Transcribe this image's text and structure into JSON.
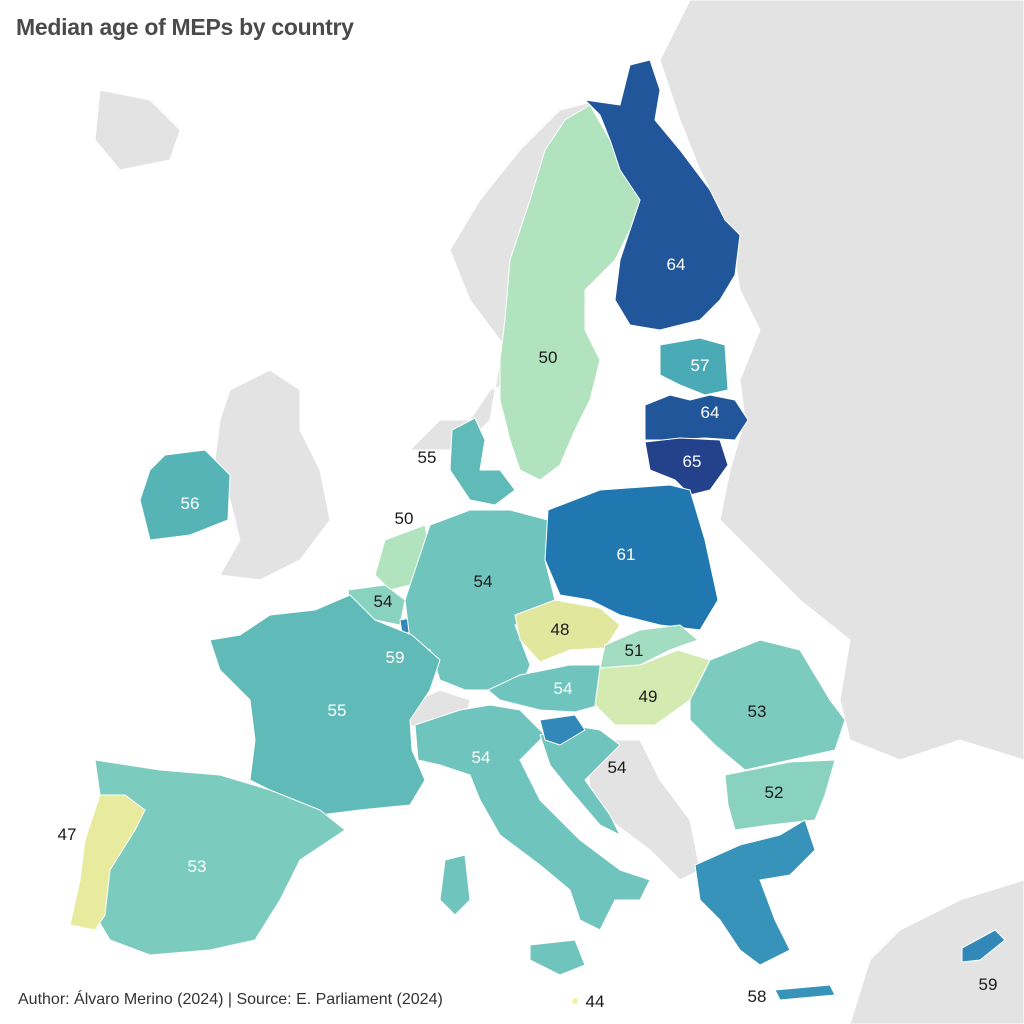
{
  "title": "Median age of MEPs by country",
  "footer": "Author: Álvaro Merino (2024) | Source: E. Parliament (2024)",
  "colors": {
    "background_land": "#e3e3e3",
    "sea": "#ffffff",
    "scale": {
      "44": "#f5f0a0",
      "47": "#e8eb9e",
      "48": "#e1e89e",
      "49": "#d3eab0",
      "50": "#b0e3be",
      "51": "#a2ddc2",
      "52": "#8ad2c0",
      "53": "#7ccbbf",
      "54": "#6fc4bd",
      "55": "#60bbb8",
      "56": "#57b4b6",
      "57": "#4aaab6",
      "58": "#3793b9",
      "59": "#3288b8",
      "61": "#2178b0",
      "64": "#21569a",
      "65": "#24418c"
    }
  },
  "countries": [
    {
      "name": "Finland",
      "value": "64"
    },
    {
      "name": "Sweden",
      "value": "50"
    },
    {
      "name": "Estonia",
      "value": "57"
    },
    {
      "name": "Latvia",
      "value": "64"
    },
    {
      "name": "Lithuania",
      "value": "65"
    },
    {
      "name": "Denmark",
      "value": "55"
    },
    {
      "name": "Ireland",
      "value": "56"
    },
    {
      "name": "Netherlands",
      "value": "50"
    },
    {
      "name": "Belgium",
      "value": "54"
    },
    {
      "name": "Luxembourg",
      "value": "59"
    },
    {
      "name": "Germany",
      "value": "54"
    },
    {
      "name": "Poland",
      "value": "61"
    },
    {
      "name": "Czechia",
      "value": "48"
    },
    {
      "name": "Slovakia",
      "value": "51"
    },
    {
      "name": "Austria",
      "value": "54"
    },
    {
      "name": "Hungary",
      "value": "49"
    },
    {
      "name": "Romania",
      "value": "53"
    },
    {
      "name": "Bulgaria",
      "value": "52"
    },
    {
      "name": "France",
      "value": "55"
    },
    {
      "name": "Italy",
      "value": "54"
    },
    {
      "name": "Croatia",
      "value": "54"
    },
    {
      "name": "Slovenia",
      "value": "59"
    },
    {
      "name": "Spain",
      "value": "53"
    },
    {
      "name": "Portugal",
      "value": "47"
    },
    {
      "name": "Greece",
      "value": "58"
    },
    {
      "name": "Cyprus",
      "value": "59"
    },
    {
      "name": "Malta",
      "value": "44"
    }
  ]
}
